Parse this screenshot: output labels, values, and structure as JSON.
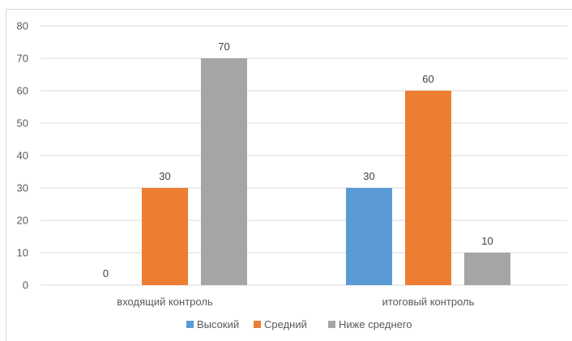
{
  "chart_data": {
    "type": "bar",
    "title": "",
    "xlabel": "",
    "ylabel": "",
    "ylim": [
      0,
      80
    ],
    "yticks": [
      0,
      10,
      20,
      30,
      40,
      50,
      60,
      70,
      80
    ],
    "grid": true,
    "legend_position": "bottom",
    "categories": [
      "входящий контроль",
      "итоговый контроль"
    ],
    "series": [
      {
        "name": "Высокий",
        "color": "#5b9bd5",
        "values": [
          0,
          30
        ]
      },
      {
        "name": "Средний",
        "color": "#ed7d31",
        "values": [
          30,
          60
        ]
      },
      {
        "name": "Ниже среднего",
        "color": "#a5a5a5",
        "values": [
          70,
          10
        ]
      }
    ]
  }
}
